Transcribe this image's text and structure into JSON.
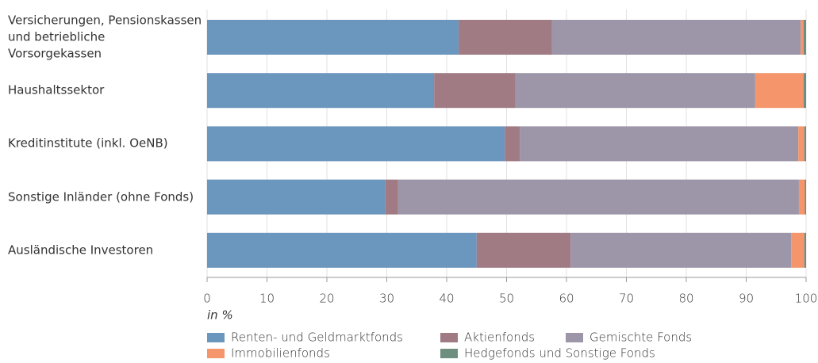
{
  "chart_data": {
    "type": "stacked_barh",
    "categories": [
      "Versicherungen, Pensionskassen\nund betriebliche Vorsorgekassen",
      "Haushaltssektor",
      "Kreditinstitute (inkl. OeNB)",
      "Sonstige Inländer (ohne Fonds)",
      "Ausländische Investoren"
    ],
    "series": [
      {
        "name": "Renten- und Geldmarktfonds",
        "color": "#6b96bd",
        "values": [
          42.0,
          37.9,
          49.7,
          29.7,
          45.0
        ]
      },
      {
        "name": "Aktienfonds",
        "color": "#a07b84",
        "values": [
          15.6,
          13.6,
          2.5,
          2.2,
          15.7
        ]
      },
      {
        "name": "Gemischte Fonds",
        "color": "#9d95a8",
        "values": [
          41.5,
          40.0,
          46.5,
          66.9,
          36.8
        ]
      },
      {
        "name": "Immobilienfonds",
        "color": "#f4956b",
        "values": [
          0.5,
          8.1,
          1.0,
          1.0,
          2.2
        ]
      },
      {
        "name": "Hedgefonds und Sonstige Fonds",
        "color": "#6e8f7f",
        "values": [
          0.4,
          0.4,
          0.3,
          0.2,
          0.3
        ]
      }
    ],
    "x_label": "in %",
    "xlim": [
      0,
      100
    ],
    "xticks": [
      0,
      10,
      20,
      30,
      40,
      50,
      60,
      70,
      80,
      90,
      100
    ],
    "grid": true
  }
}
